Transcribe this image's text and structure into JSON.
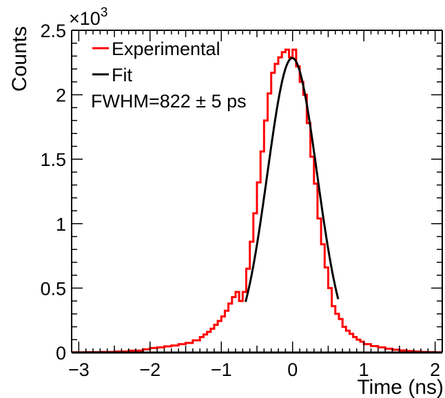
{
  "chart_data": {
    "type": "line",
    "xlabel": "Time (ns)",
    "ylabel": "Counts",
    "y_multiplier": "×10",
    "y_multiplier_exponent": "3",
    "xlim": [
      -3.1,
      2.1
    ],
    "ylim": [
      0,
      2500
    ],
    "x_ticks": [
      {
        "value": -3,
        "label": "−3"
      },
      {
        "value": -2,
        "label": "−2"
      },
      {
        "value": -1,
        "label": "−1"
      },
      {
        "value": 0,
        "label": "0"
      },
      {
        "value": 1,
        "label": "1"
      },
      {
        "value": 2,
        "label": "2"
      }
    ],
    "y_ticks": [
      {
        "value": 0,
        "label": "0"
      },
      {
        "value": 500,
        "label": "0.5"
      },
      {
        "value": 1000,
        "label": "1"
      },
      {
        "value": 1500,
        "label": "1.5"
      },
      {
        "value": 2000,
        "label": "2"
      },
      {
        "value": 2500,
        "label": "2.5"
      }
    ],
    "legend": {
      "placement": "top-left",
      "entries": [
        {
          "name": "Experimental",
          "color": "#ff0000"
        },
        {
          "name": "Fit",
          "color": "#000000"
        }
      ]
    },
    "annotation": "FWHM=822 ± 5 ps",
    "series": [
      {
        "name": "Experimental",
        "color": "#ff0000",
        "style": "histogram",
        "x": [
          -3.1,
          -2.9,
          -2.7,
          -2.5,
          -2.3,
          -2.1,
          -2.0,
          -1.9,
          -1.8,
          -1.7,
          -1.6,
          -1.5,
          -1.4,
          -1.3,
          -1.25,
          -1.2,
          -1.15,
          -1.1,
          -1.05,
          -1.0,
          -0.95,
          -0.9,
          -0.85,
          -0.8,
          -0.75,
          -0.7,
          -0.65,
          -0.6,
          -0.55,
          -0.5,
          -0.45,
          -0.4,
          -0.35,
          -0.3,
          -0.25,
          -0.2,
          -0.15,
          -0.1,
          -0.05,
          0.0,
          0.05,
          0.1,
          0.15,
          0.2,
          0.25,
          0.3,
          0.35,
          0.4,
          0.45,
          0.5,
          0.55,
          0.6,
          0.65,
          0.7,
          0.75,
          0.8,
          0.85,
          0.9,
          0.95,
          1.0,
          1.1,
          1.2,
          1.3,
          1.4,
          1.5,
          1.6,
          1.7,
          1.8,
          1.9,
          2.0,
          2.1
        ],
        "y": [
          2,
          3,
          5,
          8,
          15,
          25,
          35,
          40,
          48,
          55,
          65,
          75,
          95,
          120,
          140,
          160,
          185,
          215,
          245,
          280,
          325,
          380,
          430,
          470,
          400,
          470,
          650,
          860,
          1080,
          1320,
          1560,
          1800,
          2010,
          2170,
          2240,
          2290,
          2330,
          2350,
          2290,
          2350,
          2220,
          2100,
          2000,
          1780,
          1520,
          1310,
          1040,
          840,
          660,
          500,
          360,
          300,
          260,
          200,
          170,
          145,
          120,
          100,
          85,
          65,
          50,
          40,
          30,
          22,
          16,
          12,
          8,
          5,
          3,
          2,
          1
        ]
      },
      {
        "name": "Fit",
        "color": "#000000",
        "style": "gaussian",
        "amplitude": 2285,
        "mean": -0.005,
        "fwhm_ns": 0.822,
        "x_range": [
          -0.66,
          0.64
        ]
      }
    ]
  }
}
